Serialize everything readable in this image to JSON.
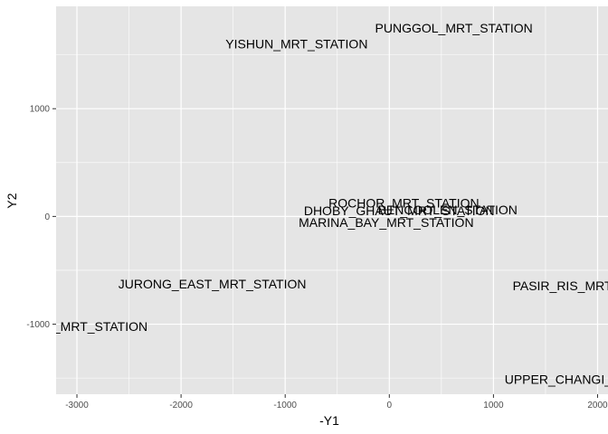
{
  "chart_data": {
    "type": "scatter",
    "title": "",
    "xlabel": "-Y1",
    "ylabel": "Y2",
    "xlim": [
      -3200,
      2100
    ],
    "ylim": [
      -1650,
      1950
    ],
    "grid": true,
    "x_ticks": [
      -3000,
      -2000,
      -1000,
      0,
      1000,
      2000
    ],
    "x_tick_labels": [
      "-3000",
      "-2000",
      "-1000",
      "0",
      "1000",
      "2000"
    ],
    "y_ticks": [
      -1000,
      0,
      1000
    ],
    "y_tick_labels": [
      "-1000",
      "0",
      "1000"
    ],
    "points": [
      {
        "label": "PUNGGOL_MRT_STATION",
        "x": 620,
        "y": 1750
      },
      {
        "label": "YISHUN_MRT_STATION",
        "x": -890,
        "y": 1600
      },
      {
        "label": "ROCHOR_MRT_STATION",
        "x": 140,
        "y": 125
      },
      {
        "label": "BENCOOLEN_STATION",
        "x": 560,
        "y": 60
      },
      {
        "label": "DHOBY_GHAUT_MRT_STATION",
        "x": 95,
        "y": 55
      },
      {
        "label": "MARINA_BAY_MRT_STATION",
        "x": -30,
        "y": -55
      },
      {
        "label": "JURONG_EAST_MRT_STATION",
        "x": -1700,
        "y": -625
      },
      {
        "label": "PASIR_RIS_MRT_STATION",
        "x": 1950,
        "y": -645
      },
      {
        "label": "KRANJI_WEST_MRT_STATION",
        "x": -3200,
        "y": -1020
      },
      {
        "label": "UPPER_CHANGI_MRT_STATION",
        "x": 2040,
        "y": -1510
      }
    ],
    "background": "#e5e5e5",
    "grid_color": "#ffffff"
  }
}
